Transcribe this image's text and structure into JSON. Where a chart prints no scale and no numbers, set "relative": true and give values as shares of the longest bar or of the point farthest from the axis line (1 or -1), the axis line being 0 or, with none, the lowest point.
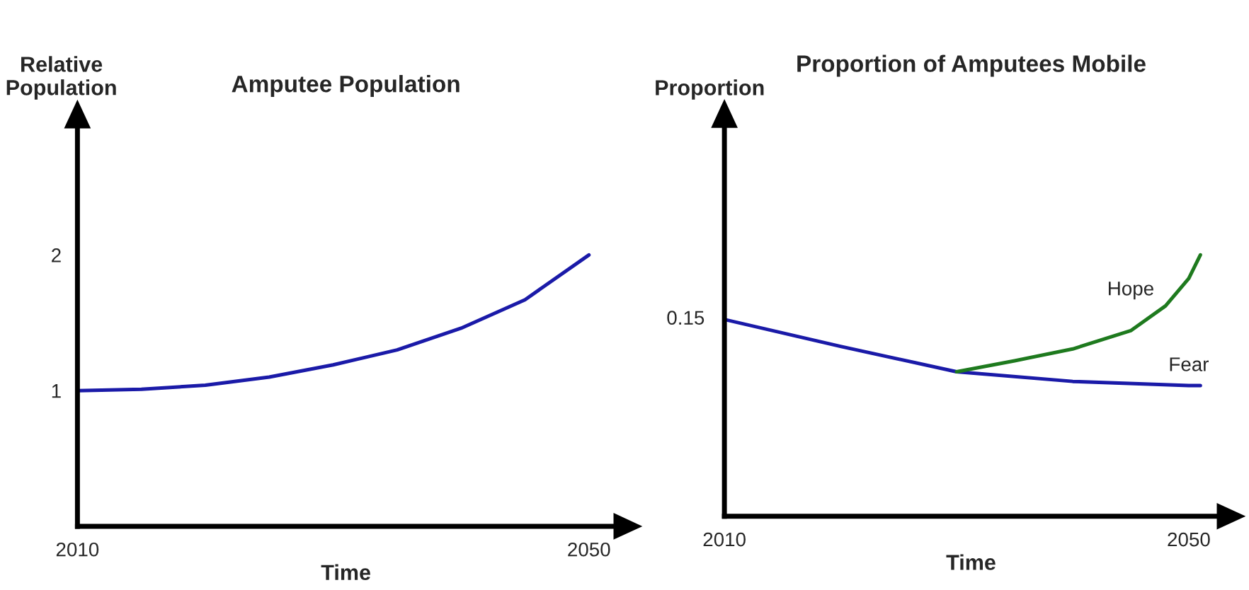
{
  "chart_data": [
    {
      "type": "line",
      "title": "Amputee Population",
      "xlabel": "Time",
      "ylabel": "Relative\nPopulation",
      "x": [
        2010,
        2015,
        2020,
        2025,
        2030,
        2035,
        2040,
        2045,
        2050
      ],
      "xlim": [
        2010,
        2052
      ],
      "xticks": [
        2010,
        2050
      ],
      "ylim": [
        0,
        2.94
      ],
      "yticks": [
        1,
        2
      ],
      "grid": false,
      "legend": false,
      "series": [
        {
          "color": "#1a1aa8",
          "values": [
            1.0,
            1.01,
            1.04,
            1.1,
            1.19,
            1.3,
            1.46,
            1.67,
            2.0
          ]
        }
      ]
    },
    {
      "type": "line",
      "title": "Proportion of Amputees Mobile",
      "xlabel": "Time",
      "ylabel": "Proportion",
      "relative": true,
      "xlim": [
        2010,
        2052.5
      ],
      "xticks": [
        2010,
        2050
      ],
      "grid": false,
      "legend": false,
      "annotations": [
        {
          "text": "0.15",
          "x": 2010,
          "y": 0.753
        }
      ],
      "series": [
        {
          "name": "Fear",
          "color": "#1a1aa8",
          "x": [
            2010,
            2020,
            2030,
            2040,
            2050,
            2051
          ],
          "values": [
            0.753,
            0.65,
            0.553,
            0.516,
            0.5,
            0.5
          ]
        },
        {
          "name": "Hope",
          "color": "#1e7a1e",
          "x": [
            2030,
            2035,
            2040,
            2045,
            2048,
            2050,
            2051
          ],
          "values": [
            0.553,
            0.595,
            0.64,
            0.71,
            0.805,
            0.91,
            1.0
          ]
        }
      ]
    }
  ]
}
